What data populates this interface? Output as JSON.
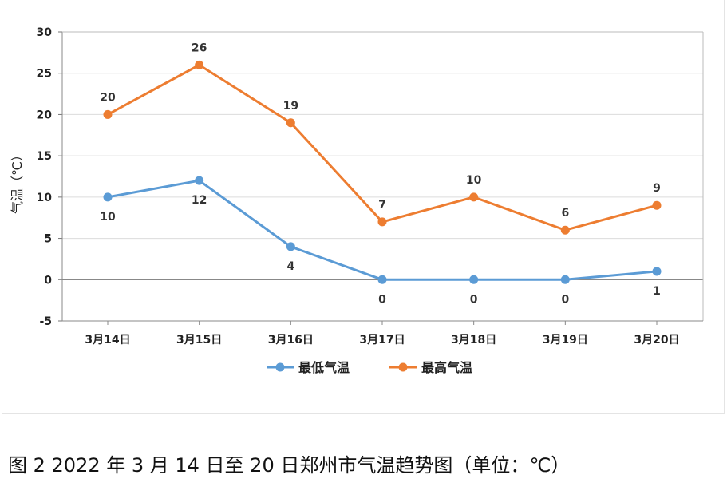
{
  "caption": "图 2   2022 年 3 月 14 日至 20 日郑州市气温趋势图（单位：℃）",
  "chart_data": {
    "type": "line",
    "title": "",
    "xlabel": "",
    "ylabel": "气温（℃）",
    "categories": [
      "3月14日",
      "3月15日",
      "3月16日",
      "3月17日",
      "3月18日",
      "3月19日",
      "3月20日"
    ],
    "ylim": [
      -5,
      30
    ],
    "yticks": [
      -5,
      0,
      5,
      10,
      15,
      20,
      25,
      30
    ],
    "grid": true,
    "legend_position": "bottom",
    "series": [
      {
        "name": "最低气温",
        "color": "#5b9bd5",
        "values": [
          10,
          12,
          4,
          0,
          0,
          0,
          1
        ]
      },
      {
        "name": "最高气温",
        "color": "#ed7d31",
        "values": [
          20,
          26,
          19,
          7,
          10,
          6,
          9
        ]
      }
    ]
  }
}
